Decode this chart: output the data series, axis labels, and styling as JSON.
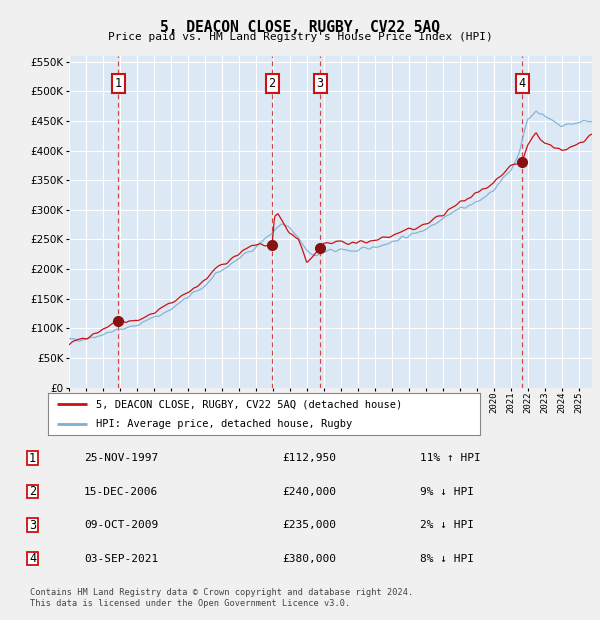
{
  "title": "5, DEACON CLOSE, RUGBY, CV22 5AQ",
  "subtitle": "Price paid vs. HM Land Registry's House Price Index (HPI)",
  "background_color": "#f0f0f0",
  "plot_bg_color": "#dce9f5",
  "grid_color": "#ffffff",
  "hpi_line_color": "#7bafd4",
  "price_line_color": "#cc1111",
  "marker_color": "#881111",
  "ylim": [
    0,
    560000
  ],
  "yticks": [
    0,
    50000,
    100000,
    150000,
    200000,
    250000,
    300000,
    350000,
    400000,
    450000,
    500000,
    550000
  ],
  "xlim_start": 1995.0,
  "xlim_end": 2025.8,
  "transactions": [
    {
      "num": 1,
      "date_str": "25-NOV-1997",
      "price": 112950,
      "hpi_pct": "11%",
      "hpi_dir": "↑"
    },
    {
      "num": 2,
      "date_str": "15-DEC-2006",
      "price": 240000,
      "hpi_pct": "9%",
      "hpi_dir": "↓"
    },
    {
      "num": 3,
      "date_str": "09-OCT-2009",
      "price": 235000,
      "hpi_pct": "2%",
      "hpi_dir": "↓"
    },
    {
      "num": 4,
      "date_str": "03-SEP-2021",
      "price": 380000,
      "hpi_pct": "8%",
      "hpi_dir": "↓"
    }
  ],
  "transaction_years": [
    1997.9,
    2006.96,
    2009.78,
    2021.67
  ],
  "legend_line1": "5, DEACON CLOSE, RUGBY, CV22 5AQ (detached house)",
  "legend_line2": "HPI: Average price, detached house, Rugby",
  "footnote1": "Contains HM Land Registry data © Crown copyright and database right 2024.",
  "footnote2": "This data is licensed under the Open Government Licence v3.0.",
  "hpi_anchors_x": [
    1995,
    1996,
    1997,
    1998,
    1999,
    2000,
    2001,
    2002,
    2003,
    2004,
    2005,
    2006,
    2007,
    2007.5,
    2008,
    2008.5,
    2009,
    2009.5,
    2010,
    2011,
    2012,
    2013,
    2014,
    2015,
    2016,
    2017,
    2018,
    2019,
    2020,
    2021,
    2021.5,
    2022,
    2022.5,
    2023,
    2024,
    2025,
    2025.8
  ],
  "hpi_anchors_y": [
    80000,
    83000,
    90000,
    98000,
    106000,
    118000,
    132000,
    152000,
    172000,
    198000,
    218000,
    238000,
    262000,
    275000,
    268000,
    252000,
    233000,
    222000,
    228000,
    233000,
    230000,
    238000,
    246000,
    256000,
    268000,
    287000,
    302000,
    312000,
    332000,
    367000,
    398000,
    452000,
    468000,
    458000,
    442000,
    448000,
    452000
  ],
  "price_anchors_x": [
    1995,
    1996,
    1997,
    1997.9,
    1998.5,
    1999,
    2000,
    2001,
    2002,
    2003,
    2004,
    2005,
    2006,
    2006.96,
    2007.1,
    2007.3,
    2008,
    2008.5,
    2009,
    2009.78,
    2010,
    2011,
    2012,
    2013,
    2014,
    2015,
    2016,
    2017,
    2018,
    2019,
    2020,
    2021,
    2021.67,
    2022,
    2022.5,
    2023,
    2024,
    2025,
    2025.8
  ],
  "price_anchors_y": [
    75000,
    82000,
    98000,
    112950,
    112000,
    112000,
    125000,
    140000,
    160000,
    182000,
    208000,
    226000,
    240000,
    240000,
    287000,
    292000,
    262000,
    250000,
    210000,
    235000,
    240000,
    246000,
    243000,
    250000,
    256000,
    266000,
    276000,
    292000,
    312000,
    328000,
    348000,
    372000,
    380000,
    408000,
    428000,
    412000,
    398000,
    412000,
    422000
  ]
}
